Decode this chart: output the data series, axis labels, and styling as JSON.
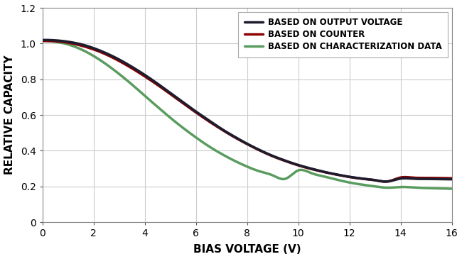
{
  "xlabel": "BIAS VOLTAGE (V)",
  "ylabel": "RELATIVE CAPACITY",
  "xlim": [
    0,
    16
  ],
  "ylim": [
    0,
    1.2
  ],
  "xticks": [
    0,
    2,
    4,
    6,
    8,
    10,
    12,
    14,
    16
  ],
  "yticks": [
    0,
    0.2,
    0.4,
    0.6,
    0.8,
    1.0,
    1.2
  ],
  "grid_color": "#cccccc",
  "background_color": "#ffffff",
  "lines": [
    {
      "label": "BASED ON OUTPUT VOLTAGE",
      "color": "#1c1c2e",
      "linewidth": 2.5,
      "zorder": 4,
      "x": [
        0.0,
        0.5,
        1.0,
        1.5,
        2.0,
        2.5,
        3.0,
        3.5,
        4.0,
        4.5,
        5.0,
        5.5,
        6.0,
        6.5,
        7.0,
        7.5,
        8.0,
        8.5,
        9.0,
        9.5,
        10.0,
        10.5,
        11.0,
        11.5,
        12.0,
        12.5,
        13.0,
        13.5,
        14.0,
        14.5,
        15.0,
        15.5,
        16.0
      ],
      "y": [
        1.02,
        1.018,
        1.01,
        0.996,
        0.974,
        0.945,
        0.91,
        0.869,
        0.824,
        0.775,
        0.723,
        0.671,
        0.619,
        0.57,
        0.522,
        0.479,
        0.439,
        0.403,
        0.371,
        0.344,
        0.32,
        0.3,
        0.282,
        0.267,
        0.254,
        0.244,
        0.235,
        0.228,
        0.244,
        0.243,
        0.242,
        0.241,
        0.24
      ]
    },
    {
      "label": "BASED ON COUNTER",
      "color": "#8b0000",
      "linewidth": 2.5,
      "zorder": 3,
      "x": [
        0.0,
        0.5,
        1.0,
        1.5,
        2.0,
        2.5,
        3.0,
        3.5,
        4.0,
        4.5,
        5.0,
        5.5,
        6.0,
        6.5,
        7.0,
        7.5,
        8.0,
        8.5,
        9.0,
        9.5,
        10.0,
        10.5,
        11.0,
        11.5,
        12.0,
        12.5,
        13.0,
        13.5,
        14.0,
        14.5,
        15.0,
        15.5,
        16.0
      ],
      "y": [
        1.015,
        1.013,
        1.005,
        0.989,
        0.967,
        0.938,
        0.902,
        0.861,
        0.816,
        0.768,
        0.717,
        0.665,
        0.614,
        0.565,
        0.519,
        0.476,
        0.437,
        0.401,
        0.369,
        0.342,
        0.318,
        0.298,
        0.281,
        0.266,
        0.253,
        0.243,
        0.235,
        0.228,
        0.25,
        0.249,
        0.248,
        0.247,
        0.246
      ]
    },
    {
      "label": "BASED ON CHARACTERIZATION DATA",
      "color": "#5a9c60",
      "linewidth": 2.5,
      "zorder": 2,
      "x": [
        0.0,
        0.5,
        1.0,
        1.5,
        2.0,
        2.5,
        3.0,
        3.5,
        4.0,
        4.5,
        5.0,
        5.5,
        6.0,
        6.5,
        7.0,
        7.5,
        8.0,
        8.5,
        9.0,
        9.5,
        10.0,
        10.5,
        11.0,
        11.5,
        12.0,
        12.5,
        13.0,
        13.5,
        14.0,
        14.5,
        15.0,
        15.5,
        16.0
      ],
      "y": [
        1.015,
        1.01,
        0.995,
        0.968,
        0.93,
        0.883,
        0.829,
        0.77,
        0.707,
        0.645,
        0.584,
        0.527,
        0.474,
        0.425,
        0.382,
        0.344,
        0.311,
        0.284,
        0.262,
        0.243,
        0.29,
        0.275,
        0.256,
        0.238,
        0.222,
        0.21,
        0.2,
        0.193,
        0.197,
        0.194,
        0.191,
        0.189,
        0.187
      ]
    }
  ]
}
